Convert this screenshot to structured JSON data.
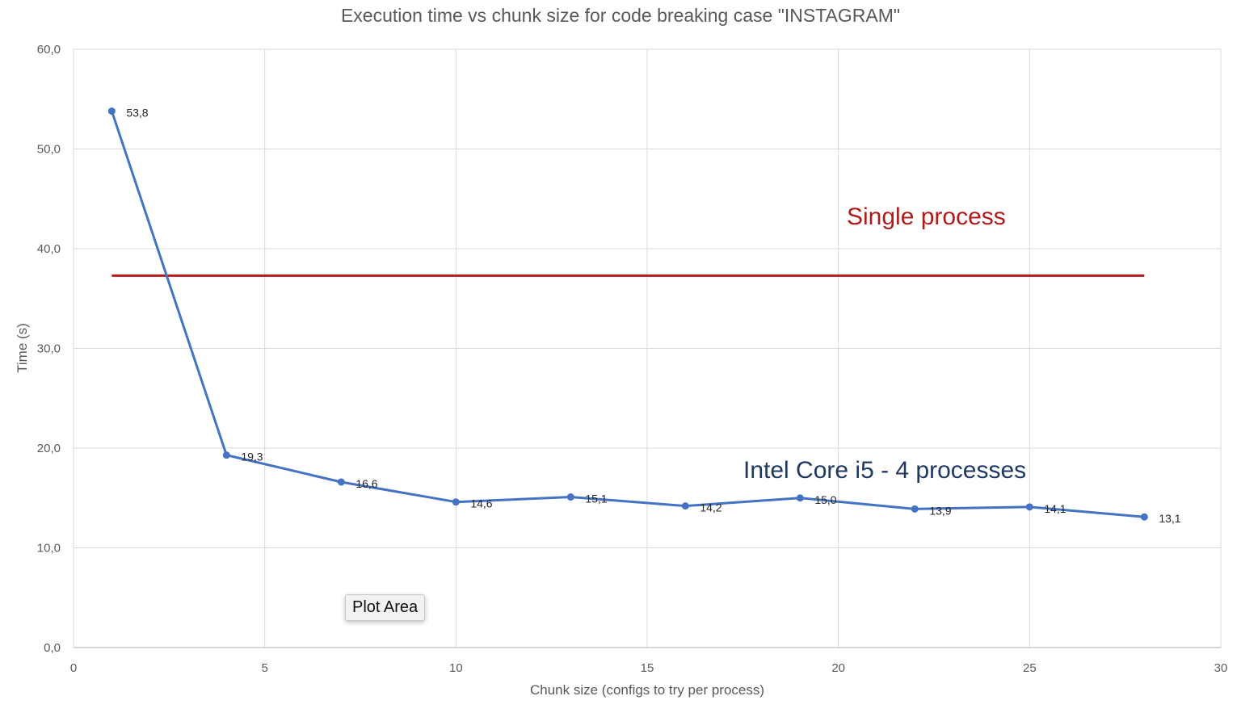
{
  "chart_data": {
    "type": "line",
    "title": "Execution time vs chunk size for code breaking case \"INSTAGRAM\"",
    "xlabel": "Chunk size (configs to try per process)",
    "ylabel": "Time (s)",
    "xlim": [
      0,
      30
    ],
    "ylim": [
      0,
      60
    ],
    "xticks": [
      0,
      5,
      10,
      15,
      20,
      25,
      30
    ],
    "yticks": [
      "0,0",
      "10,0",
      "20,0",
      "30,0",
      "40,0",
      "50,0",
      "60,0"
    ],
    "grid": true,
    "series": [
      {
        "name": "Intel Core i5 - 4 processes",
        "color": "#4472c4",
        "x": [
          1,
          4,
          7,
          10,
          13,
          16,
          19,
          22,
          25,
          28
        ],
        "y": [
          53.8,
          19.3,
          16.6,
          14.6,
          15.1,
          14.2,
          15.0,
          13.9,
          14.1,
          13.1
        ],
        "labels": [
          "53,8",
          "19,3",
          "16,6",
          "14,6",
          "15,1",
          "14,2",
          "15,0",
          "13,9",
          "14,1",
          "13,1"
        ]
      },
      {
        "name": "Single process",
        "color": "#b01c1c",
        "x": [
          1,
          28
        ],
        "y": [
          37.3,
          37.3
        ]
      }
    ],
    "annotations": [
      {
        "text": "Single process",
        "color": "#b01c1c"
      },
      {
        "text": "Intel Core i5 - 4 processes",
        "color": "#1f3864"
      }
    ]
  },
  "tooltip": "Plot Area"
}
